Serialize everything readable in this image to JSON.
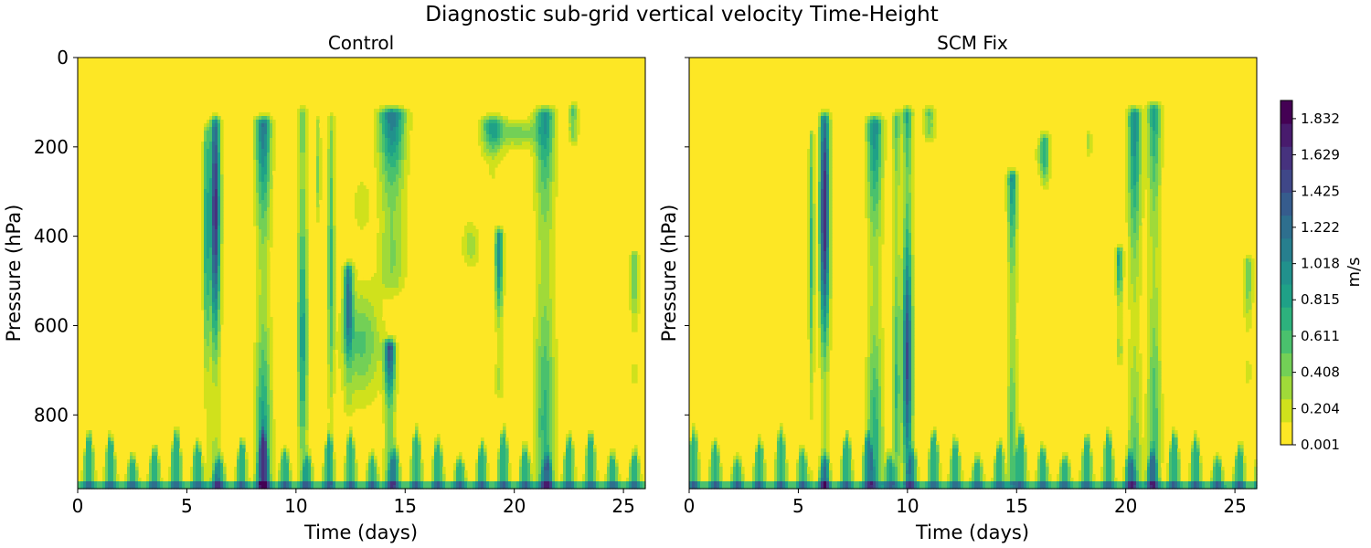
{
  "chart_data": {
    "type": "heatmap",
    "title": "Diagnostic sub-grid vertical velocity Time-Height",
    "colormap": [
      "#fde725",
      "#d0e11c",
      "#a0da39",
      "#73d056",
      "#4ac16d",
      "#2db27d",
      "#1fa187",
      "#21918c",
      "#277f8e",
      "#2e6f8e",
      "#365c8d",
      "#3f4788",
      "#46327e",
      "#481b6d",
      "#440154"
    ],
    "colorbar": {
      "label": "m/s",
      "ticks": [
        0.001,
        0.204,
        0.408,
        0.611,
        0.815,
        1.018,
        1.222,
        1.425,
        1.629,
        1.832
      ],
      "range": [
        0.001,
        1.934
      ]
    },
    "panels": [
      {
        "title": "Control",
        "xlabel": "Time (days)",
        "ylabel": "Pressure (hPa)",
        "xlim": [
          0,
          26
        ],
        "ylim": [
          965,
          0
        ],
        "xticks": [
          0,
          5,
          10,
          15,
          20,
          25
        ],
        "yticks": [
          0,
          200,
          400,
          600,
          800
        ],
        "features": [
          {
            "type": "column",
            "t": 6.3,
            "w": 0.22,
            "top": 150,
            "bottom": 950,
            "amp": 1.75,
            "decay": 0.25
          },
          {
            "type": "column",
            "t": 5.9,
            "w": 0.15,
            "top": 170,
            "bottom": 950,
            "amp": 0.9,
            "decay": 0.4
          },
          {
            "type": "column",
            "t": 8.5,
            "w": 0.35,
            "top": 150,
            "bottom": 950,
            "amp": 1.25,
            "decay": 0.3
          },
          {
            "type": "column",
            "t": 10.3,
            "w": 0.22,
            "top": 130,
            "bottom": 950,
            "amp": 1.1,
            "decay": 0.35
          },
          {
            "type": "column",
            "t": 11.0,
            "w": 0.12,
            "top": 150,
            "bottom": 400,
            "amp": 0.6,
            "decay": 0.5
          },
          {
            "type": "column",
            "t": 11.6,
            "w": 0.15,
            "top": 140,
            "bottom": 950,
            "amp": 0.8,
            "decay": 0.35
          },
          {
            "type": "column",
            "t": 12.4,
            "w": 0.2,
            "top": 480,
            "bottom": 760,
            "amp": 1.3,
            "decay": 0.6
          },
          {
            "type": "column",
            "t": 14.4,
            "w": 0.6,
            "top": 130,
            "bottom": 500,
            "amp": 1.15,
            "decay": 0.7
          },
          {
            "type": "column",
            "t": 14.3,
            "w": 0.25,
            "top": 650,
            "bottom": 950,
            "amp": 1.4,
            "decay": 0.6
          },
          {
            "type": "column",
            "t": 19.3,
            "w": 0.18,
            "top": 400,
            "bottom": 720,
            "amp": 1.1,
            "decay": 0.5
          },
          {
            "type": "column",
            "t": 19.0,
            "w": 0.5,
            "top": 150,
            "bottom": 260,
            "amp": 0.9,
            "decay": 0.8
          },
          {
            "type": "column",
            "t": 21.4,
            "w": 0.45,
            "top": 130,
            "bottom": 950,
            "amp": 1.05,
            "decay": 0.4
          },
          {
            "type": "column",
            "t": 22.7,
            "w": 0.2,
            "top": 125,
            "bottom": 200,
            "amp": 0.8,
            "decay": 0.7
          },
          {
            "type": "column",
            "t": 25.5,
            "w": 0.2,
            "top": 450,
            "bottom": 700,
            "amp": 0.6,
            "decay": 0.5
          },
          {
            "type": "blob",
            "t": 13.0,
            "p": 640,
            "wt": 0.9,
            "wp": 120,
            "amp": 0.55
          },
          {
            "type": "blob",
            "t": 13.0,
            "p": 330,
            "wt": 0.4,
            "wp": 60,
            "amp": 0.25
          },
          {
            "type": "blob",
            "t": 18.0,
            "p": 420,
            "wt": 0.4,
            "wp": 50,
            "amp": 0.35
          },
          {
            "type": "blob",
            "t": 20.2,
            "p": 170,
            "wt": 0.9,
            "wp": 30,
            "amp": 0.45
          }
        ]
      },
      {
        "title": "SCM Fix",
        "xlabel": "Time (days)",
        "ylabel": "Pressure (hPa)",
        "xlim": [
          0,
          26
        ],
        "ylim": [
          965,
          0
        ],
        "xticks": [
          0,
          5,
          10,
          15,
          20,
          25
        ],
        "yticks": [
          0,
          200,
          400,
          600,
          800
        ],
        "features": [
          {
            "type": "column",
            "t": 6.2,
            "w": 0.22,
            "top": 140,
            "bottom": 950,
            "amp": 1.8,
            "decay": 0.25
          },
          {
            "type": "column",
            "t": 5.6,
            "w": 0.12,
            "top": 180,
            "bottom": 950,
            "amp": 0.8,
            "decay": 0.4
          },
          {
            "type": "column",
            "t": 8.5,
            "w": 0.35,
            "top": 150,
            "bottom": 950,
            "amp": 1.1,
            "decay": 0.35
          },
          {
            "type": "column",
            "t": 10.0,
            "w": 0.22,
            "top": 130,
            "bottom": 950,
            "amp": 1.75,
            "decay": 0.25
          },
          {
            "type": "column",
            "t": 9.5,
            "w": 0.18,
            "top": 140,
            "bottom": 950,
            "amp": 0.9,
            "decay": 0.35
          },
          {
            "type": "column",
            "t": 11.0,
            "w": 0.25,
            "top": 130,
            "bottom": 200,
            "amp": 0.7,
            "decay": 0.7
          },
          {
            "type": "column",
            "t": 14.8,
            "w": 0.22,
            "top": 270,
            "bottom": 950,
            "amp": 1.0,
            "decay": 0.45
          },
          {
            "type": "column",
            "t": 16.3,
            "w": 0.2,
            "top": 190,
            "bottom": 300,
            "amp": 0.7,
            "decay": 0.7
          },
          {
            "type": "column",
            "t": 19.7,
            "w": 0.15,
            "top": 440,
            "bottom": 650,
            "amp": 0.9,
            "decay": 0.5
          },
          {
            "type": "column",
            "t": 20.4,
            "w": 0.3,
            "top": 130,
            "bottom": 950,
            "amp": 1.0,
            "decay": 0.4
          },
          {
            "type": "column",
            "t": 21.3,
            "w": 0.3,
            "top": 120,
            "bottom": 950,
            "amp": 0.95,
            "decay": 0.4
          },
          {
            "type": "column",
            "t": 25.6,
            "w": 0.2,
            "top": 460,
            "bottom": 700,
            "amp": 0.55,
            "decay": 0.5
          },
          {
            "type": "blob",
            "t": 16.2,
            "p": 220,
            "wt": 0.3,
            "wp": 40,
            "amp": 0.4
          },
          {
            "type": "blob",
            "t": 18.3,
            "p": 190,
            "wt": 0.15,
            "wp": 30,
            "amp": 0.35
          }
        ]
      }
    ],
    "boundary_layer": {
      "top": 880,
      "decay_top": 700,
      "amp": 0.75,
      "period_days": 1.0
    }
  }
}
